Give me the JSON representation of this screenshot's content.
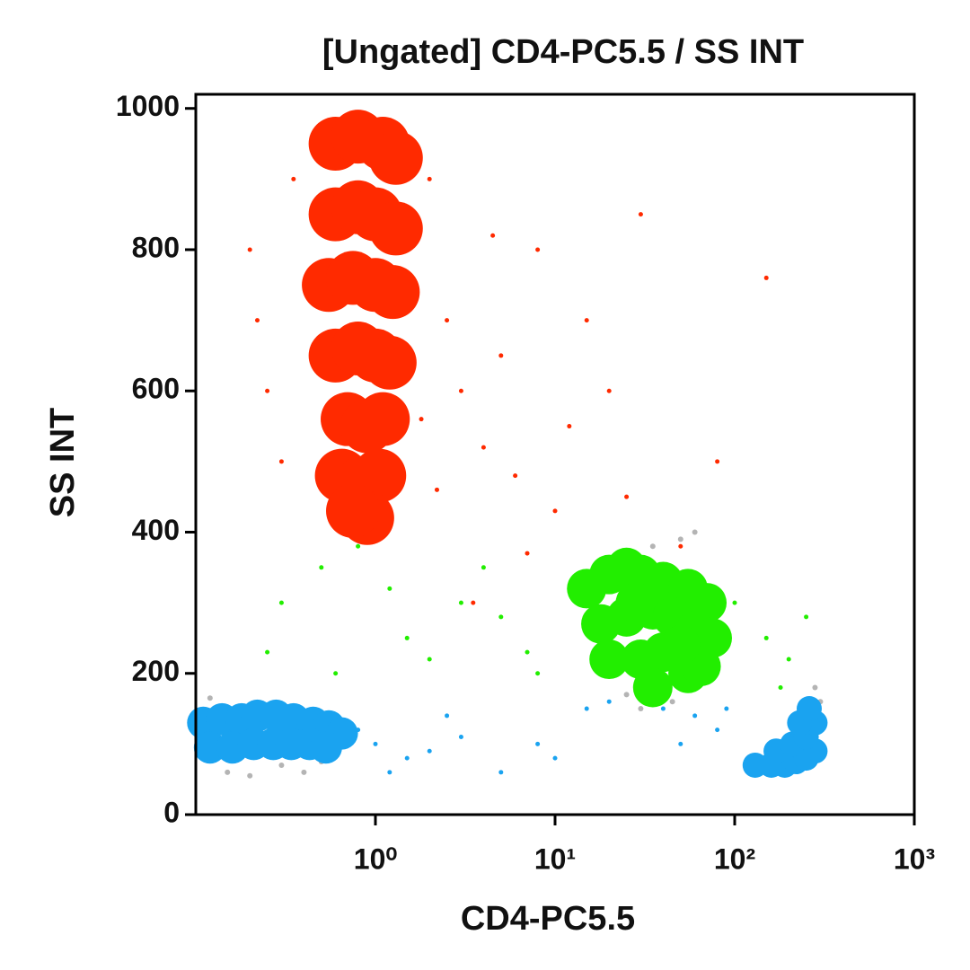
{
  "chart_data": {
    "type": "scatter",
    "title": "[Ungated] CD4-PC5.5 / SS INT",
    "x_label": "CD4-PC5.5",
    "y_label": "SS INT",
    "xscale": "log",
    "xlim": [
      0.1,
      1000
    ],
    "xticks": [
      {
        "value": 1,
        "label": "10⁰"
      },
      {
        "value": 10,
        "label": "10¹"
      },
      {
        "value": 100,
        "label": "10²"
      },
      {
        "value": 1000,
        "label": "10³"
      }
    ],
    "ylim": [
      0,
      1020
    ],
    "yticks": [
      0,
      200,
      400,
      600,
      800,
      1000
    ],
    "series": [
      {
        "color": "#b4b4b4",
        "marker_size": 3,
        "x": [
          0.15,
          0.2,
          0.3,
          0.4,
          0.5,
          0.12,
          25,
          35,
          50,
          45,
          280,
          300,
          0.6,
          60,
          200,
          150,
          30
        ],
        "y": [
          60,
          55,
          70,
          60,
          75,
          165,
          170,
          380,
          390,
          160,
          180,
          160,
          420,
          400,
          110,
          60,
          150
        ]
      },
      {
        "color": "#ff2a00",
        "marker_size": 2.5,
        "x": [
          0.2,
          0.25,
          0.3,
          2,
          2.5,
          3,
          4,
          5,
          6,
          8,
          10,
          15,
          20,
          30,
          50,
          80,
          150,
          3.5,
          2.2,
          7,
          12,
          0.35,
          0.22,
          25,
          4.5,
          1.8
        ],
        "y": [
          800,
          600,
          500,
          900,
          700,
          600,
          520,
          650,
          480,
          800,
          430,
          700,
          600,
          850,
          380,
          500,
          760,
          300,
          460,
          370,
          550,
          900,
          700,
          450,
          820,
          560
        ]
      },
      {
        "color": "#22ee00",
        "marker_size": 2.5,
        "x": [
          0.3,
          0.5,
          0.8,
          1.5,
          2,
          3,
          5,
          7,
          100,
          150,
          200,
          250,
          0.25,
          0.6,
          1.2,
          4,
          8,
          180
        ],
        "y": [
          300,
          350,
          380,
          250,
          220,
          300,
          280,
          230,
          300,
          250,
          220,
          280,
          230,
          200,
          320,
          350,
          200,
          180
        ]
      },
      {
        "color": "#1aa3f0",
        "marker_size": 2.5,
        "x": [
          0.8,
          1,
          1.5,
          2,
          3,
          5,
          8,
          15,
          20,
          30,
          40,
          60,
          80,
          1.2,
          2.5,
          10,
          50,
          90
        ],
        "y": [
          120,
          100,
          80,
          90,
          110,
          60,
          100,
          150,
          160,
          170,
          150,
          140,
          120,
          60,
          140,
          80,
          100,
          150
        ]
      },
      {
        "color": "#ff2a00",
        "marker_size": 30,
        "x": [
          0.6,
          0.8,
          1.1,
          1.3,
          0.6,
          0.8,
          1.0,
          1.3,
          0.55,
          0.75,
          1.0,
          1.25,
          0.6,
          0.8,
          1.0,
          1.2,
          0.7,
          0.9,
          1.1,
          0.65,
          0.85,
          1.05,
          0.9,
          0.75
        ],
        "y": [
          950,
          960,
          950,
          930,
          850,
          860,
          850,
          830,
          750,
          760,
          750,
          740,
          650,
          660,
          650,
          640,
          560,
          550,
          560,
          480,
          470,
          480,
          420,
          430
        ]
      },
      {
        "color": "#22ee00",
        "marker_size": 22,
        "x": [
          15,
          20,
          25,
          30,
          40,
          55,
          70,
          18,
          25,
          35,
          45,
          60,
          75,
          20,
          30,
          40,
          55,
          65,
          35,
          28,
          50
        ],
        "y": [
          320,
          340,
          350,
          340,
          330,
          320,
          300,
          270,
          280,
          290,
          280,
          260,
          250,
          220,
          220,
          230,
          200,
          210,
          180,
          300,
          240
        ]
      },
      {
        "color": "#1aa3f0",
        "marker_size": 18,
        "x": [
          0.11,
          0.14,
          0.18,
          0.22,
          0.28,
          0.35,
          0.45,
          0.55,
          0.65,
          0.12,
          0.16,
          0.21,
          0.27,
          0.34,
          0.43,
          0.53
        ],
        "y": [
          130,
          135,
          135,
          140,
          140,
          135,
          130,
          125,
          115,
          95,
          95,
          100,
          100,
          100,
          100,
          95
        ]
      },
      {
        "color": "#1aa3f0",
        "marker_size": 14,
        "x": [
          130,
          160,
          190,
          220,
          250,
          280,
          170,
          210,
          250,
          280,
          230,
          260
        ],
        "y": [
          70,
          70,
          70,
          75,
          80,
          90,
          90,
          100,
          110,
          130,
          130,
          150
        ]
      }
    ]
  }
}
